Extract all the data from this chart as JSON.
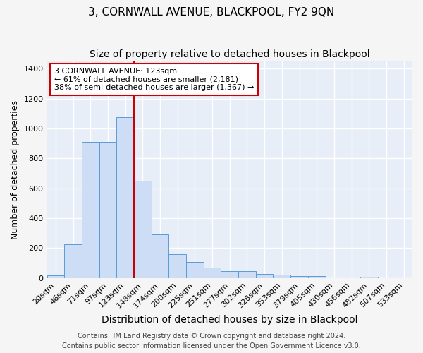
{
  "title": "3, CORNWALL AVENUE, BLACKPOOL, FY2 9QN",
  "subtitle": "Size of property relative to detached houses in Blackpool",
  "xlabel": "Distribution of detached houses by size in Blackpool",
  "ylabel": "Number of detached properties",
  "categories": [
    "20sqm",
    "46sqm",
    "71sqm",
    "97sqm",
    "123sqm",
    "148sqm",
    "174sqm",
    "200sqm",
    "225sqm",
    "251sqm",
    "277sqm",
    "302sqm",
    "328sqm",
    "353sqm",
    "379sqm",
    "405sqm",
    "430sqm",
    "456sqm",
    "482sqm",
    "507sqm",
    "533sqm"
  ],
  "values": [
    20,
    225,
    910,
    910,
    1075,
    650,
    290,
    160,
    108,
    68,
    45,
    45,
    28,
    22,
    12,
    12,
    0,
    0,
    10,
    0,
    0
  ],
  "bar_color": "#ccddf5",
  "bar_edge_color": "#5b9bd5",
  "vline_color": "#cc0000",
  "annotation_text": "3 CORNWALL AVENUE: 123sqm\n← 61% of detached houses are smaller (2,181)\n38% of semi-detached houses are larger (1,367) →",
  "annotation_box_color": "#ffffff",
  "annotation_box_edge": "#cc0000",
  "ylim": [
    0,
    1450
  ],
  "yticks": [
    0,
    200,
    400,
    600,
    800,
    1000,
    1200,
    1400
  ],
  "plot_bg_color": "#e8eef8",
  "fig_bg_color": "#f5f5f5",
  "grid_color": "#ffffff",
  "footer": "Contains HM Land Registry data © Crown copyright and database right 2024.\nContains public sector information licensed under the Open Government Licence v3.0.",
  "title_fontsize": 11,
  "subtitle_fontsize": 10,
  "xlabel_fontsize": 10,
  "ylabel_fontsize": 9,
  "tick_fontsize": 8,
  "footer_fontsize": 7,
  "annot_fontsize": 8
}
